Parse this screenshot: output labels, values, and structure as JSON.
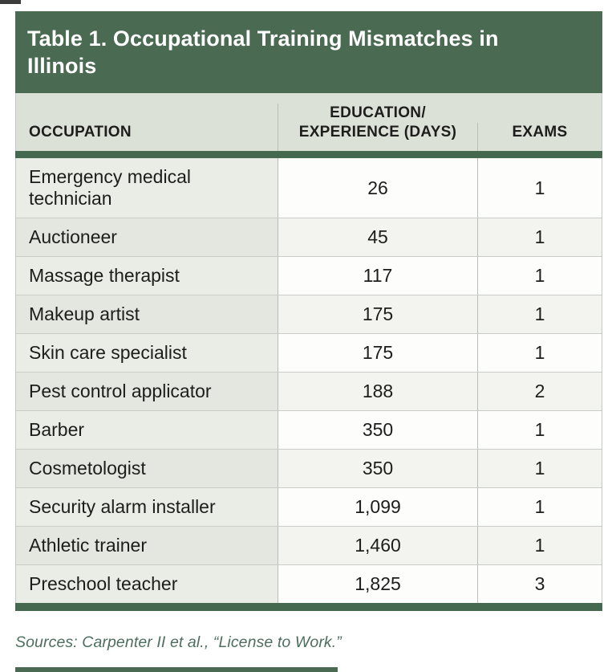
{
  "colors": {
    "title_bar_green": "#4a6a52",
    "rule_green": "#44694e",
    "header_bg": "#dce1d8",
    "occupation_cell_bg": "#eaede6",
    "numeric_cell_bg": "#fdfdfc",
    "source_text_green": "#4e6e60",
    "body_text": "#1d1d1b"
  },
  "table": {
    "title": "Table 1. Occupational Training Mismatches in Illinois",
    "columns": [
      {
        "label": "OCCUPATION"
      },
      {
        "label": "EDUCATION/EXPERIENCE (DAYS)",
        "line1": "EDUCATION/",
        "line2": "EXPERIENCE (DAYS)"
      },
      {
        "label": "EXAMS"
      }
    ],
    "rows": [
      {
        "occupation": "Emergency medical technician",
        "days": "26",
        "exams": "1"
      },
      {
        "occupation": "Auctioneer",
        "days": "45",
        "exams": "1"
      },
      {
        "occupation": "Massage therapist",
        "days": "117",
        "exams": "1"
      },
      {
        "occupation": "Makeup artist",
        "days": "175",
        "exams": "1"
      },
      {
        "occupation": "Skin care specialist",
        "days": "175",
        "exams": "1"
      },
      {
        "occupation": "Pest control applicator",
        "days": "188",
        "exams": "2"
      },
      {
        "occupation": "Barber",
        "days": "350",
        "exams": "1"
      },
      {
        "occupation": "Cosmetologist",
        "days": "350",
        "exams": "1"
      },
      {
        "occupation": "Security alarm installer",
        "days": "1,099",
        "exams": "1"
      },
      {
        "occupation": "Athletic trainer",
        "days": "1,460",
        "exams": "1"
      },
      {
        "occupation": "Preschool teacher",
        "days": "1,825",
        "exams": "3"
      }
    ]
  },
  "source_note": "Sources: Carpenter II et al., “License to Work.”",
  "chart_data": {
    "type": "table",
    "title": "Table 1. Occupational Training Mismatches in Illinois",
    "columns": [
      "OCCUPATION",
      "EDUCATION/EXPERIENCE (DAYS)",
      "EXAMS"
    ],
    "rows": [
      [
        "Emergency medical technician",
        26,
        1
      ],
      [
        "Auctioneer",
        45,
        1
      ],
      [
        "Massage therapist",
        117,
        1
      ],
      [
        "Makeup artist",
        175,
        1
      ],
      [
        "Skin care specialist",
        175,
        1
      ],
      [
        "Pest control applicator",
        188,
        2
      ],
      [
        "Barber",
        350,
        1
      ],
      [
        "Cosmetologist",
        350,
        1
      ],
      [
        "Security alarm installer",
        1099,
        1
      ],
      [
        "Athletic trainer",
        1460,
        1
      ],
      [
        "Preschool teacher",
        1825,
        3
      ]
    ]
  }
}
